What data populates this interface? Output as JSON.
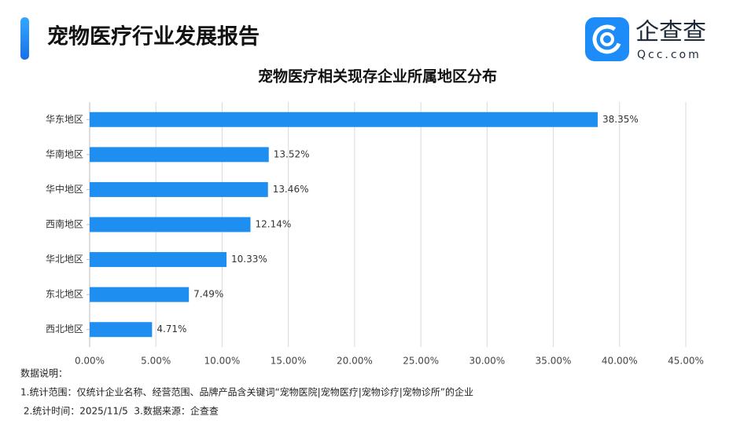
{
  "header": {
    "title": "宠物医疗行业发展报告",
    "logo_name": "企查查",
    "logo_site": "Qcc.com"
  },
  "chart_data": {
    "type": "bar",
    "orientation": "horizontal",
    "title": "宠物医疗相关现存企业所属地区分布",
    "categories": [
      "华东地区",
      "华南地区",
      "华中地区",
      "西南地区",
      "华北地区",
      "东北地区",
      "西北地区"
    ],
    "values": [
      38.35,
      13.52,
      13.46,
      12.14,
      10.33,
      7.49,
      4.71
    ],
    "value_labels": [
      "38.35%",
      "13.52%",
      "13.46%",
      "12.14%",
      "10.33%",
      "7.49%",
      "4.71%"
    ],
    "color": "#1e8ef0",
    "xlim": [
      0,
      45
    ],
    "xticks": [
      {
        "value": 0,
        "label": "0.00%"
      },
      {
        "value": 5,
        "label": "5.00%"
      },
      {
        "value": 10,
        "label": "10.00%"
      },
      {
        "value": 15,
        "label": "15.00%"
      },
      {
        "value": 20,
        "label": "20.00%"
      },
      {
        "value": 25,
        "label": "25.00%"
      },
      {
        "value": 30,
        "label": "30.00%"
      },
      {
        "value": 35,
        "label": "35.00%"
      },
      {
        "value": 40,
        "label": "40.00%"
      },
      {
        "value": 45,
        "label": "45.00%"
      }
    ],
    "grid": true
  },
  "notes": {
    "heading": "数据说明：",
    "lines": [
      "1.统计范围：仅统计企业名称、经营范围、品牌产品含关键词“宠物医院|宠物医疗|宠物诊疗|宠物诊所”的企业",
      " 2.统计时间：2025/11/5  3.数据来源：企查查"
    ]
  }
}
